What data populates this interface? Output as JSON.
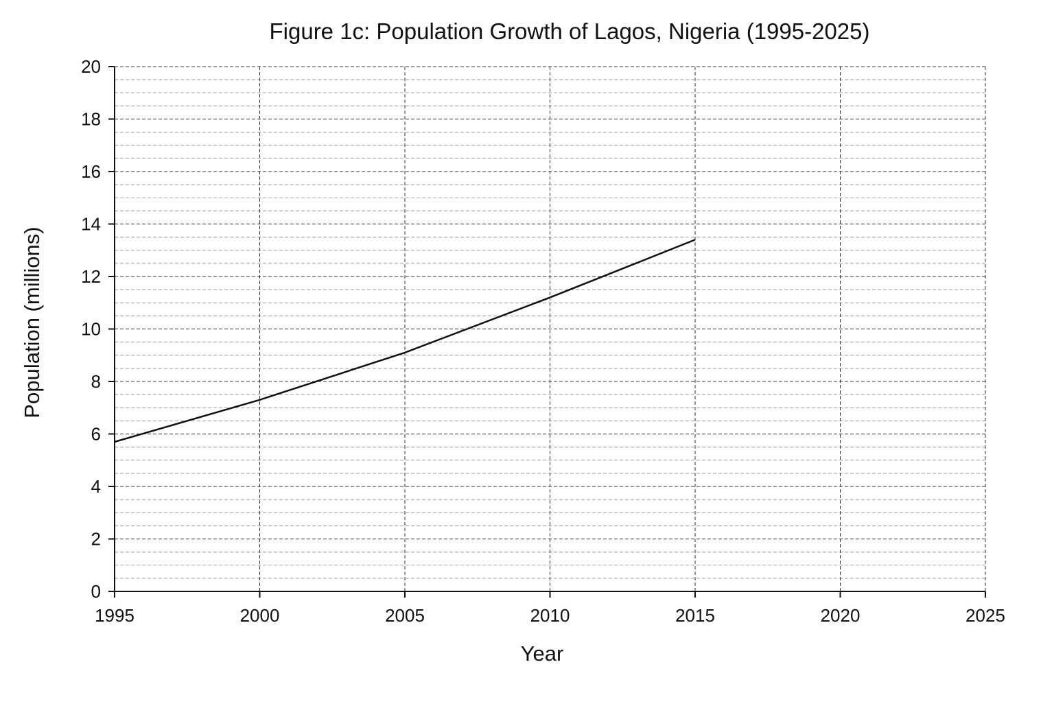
{
  "chart_data": {
    "type": "line",
    "title": "Figure 1c: Population Growth of Lagos, Nigeria (1995-2025)",
    "xlabel": "Year",
    "ylabel": "Population (millions)",
    "xlim": [
      1995,
      2025
    ],
    "ylim": [
      0,
      20
    ],
    "x_ticks": [
      "1995",
      "2000",
      "2005",
      "2010",
      "2015",
      "2020",
      "2025"
    ],
    "y_ticks": [
      "0",
      "2",
      "4",
      "6",
      "8",
      "10",
      "12",
      "14",
      "16",
      "18",
      "20"
    ],
    "grid": true,
    "legend": "none",
    "series": [
      {
        "x": [
          1995,
          2000,
          2005,
          2010,
          2015
        ],
        "values": [
          5.7,
          7.3,
          9.1,
          11.2,
          13.4
        ],
        "color": "#111111"
      }
    ]
  }
}
